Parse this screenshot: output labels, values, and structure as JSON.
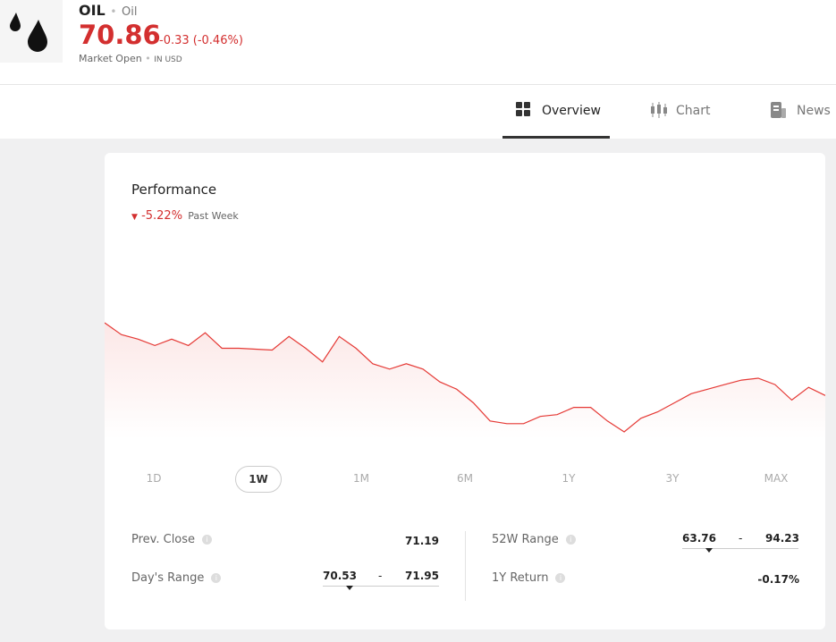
{
  "header": {
    "symbol": "OIL",
    "name": "Oil",
    "price": 70.86,
    "change": "-0.33 (-0.46%)",
    "status": "Market Open",
    "currency": "IN USD"
  },
  "tabs": [
    "Overview",
    "Chart",
    "News"
  ],
  "performance": {
    "title": "Performance",
    "change": "-5.22%",
    "period": "Past Week",
    "chart": {
      "type": "line",
      "color": "#e53935",
      "values": [
        74.86,
        74.21,
        73.96,
        73.61,
        73.96,
        73.61,
        74.31,
        73.46,
        73.46,
        73.41,
        73.36,
        74.11,
        73.46,
        72.71,
        74.11,
        73.46,
        72.61,
        72.31,
        72.61,
        72.31,
        71.61,
        71.21,
        70.46,
        69.46,
        69.31,
        69.31,
        69.71,
        69.81,
        70.21,
        70.21,
        69.46,
        68.86,
        69.61,
        69.96,
        70.46,
        70.96,
        71.21,
        71.46,
        71.71,
        71.81,
        71.46,
        70.61,
        71.31,
        70.86
      ]
    },
    "ranges": [
      "1D",
      "1W",
      "1M",
      "6M",
      "1Y",
      "3Y",
      "MAX"
    ],
    "active_range": 1
  },
  "stats": {
    "prev_close": {
      "label": "Prev. Close",
      "value": 71.19
    },
    "days_range": {
      "label": "Day's Range",
      "low": 70.53,
      "high": 71.95,
      "separator": "-"
    },
    "week52_range": {
      "label": "52W Range",
      "low": 63.76,
      "high": 94.23,
      "separator": "-"
    },
    "return_1y": {
      "label": "1Y Return",
      "value": "-0.17%"
    }
  }
}
